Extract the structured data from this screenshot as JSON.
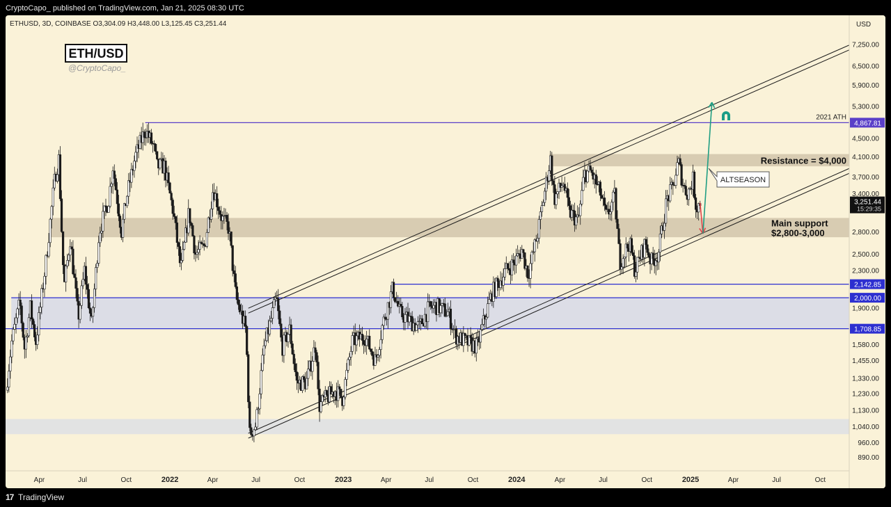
{
  "header": {
    "published": "CryptoCapo_ published on TradingView.com, Jan 21, 2025 08:30 UTC"
  },
  "footer": {
    "logo_glyph": "17",
    "brand": "TradingView"
  },
  "chart_data": {
    "type": "candlestick",
    "symbol_line": "ETHUSD, 3D, COINBASE  O3,304.09  H3,448.00  L3,125.45  C3,251.44",
    "logo_title": "ETH/USD",
    "author": "@CryptoCapo_",
    "currency": "USD",
    "scale": "log",
    "ylim": [
      830,
      8400
    ],
    "xlim": [
      "2021-01-20",
      "2025-12-01"
    ],
    "y_ticks": [
      7250,
      6500,
      5900,
      5300,
      4500,
      4100,
      3700,
      3400,
      2800,
      2500,
      2300,
      1900,
      1580,
      1455,
      1330,
      1230,
      1130,
      1040,
      960,
      890
    ],
    "x_ticks": [
      {
        "label": "Apr",
        "date": "2021-04-01",
        "bold": false
      },
      {
        "label": "Jul",
        "date": "2021-07-01",
        "bold": false
      },
      {
        "label": "Oct",
        "date": "2021-10-01",
        "bold": false
      },
      {
        "label": "2022",
        "date": "2022-01-01",
        "bold": true
      },
      {
        "label": "Apr",
        "date": "2022-04-01",
        "bold": false
      },
      {
        "label": "Jul",
        "date": "2022-07-01",
        "bold": false
      },
      {
        "label": "Oct",
        "date": "2022-10-01",
        "bold": false
      },
      {
        "label": "2023",
        "date": "2023-01-01",
        "bold": true
      },
      {
        "label": "Apr",
        "date": "2023-04-01",
        "bold": false
      },
      {
        "label": "Jul",
        "date": "2023-07-01",
        "bold": false
      },
      {
        "label": "Oct",
        "date": "2023-10-01",
        "bold": false
      },
      {
        "label": "2024",
        "date": "2024-01-01",
        "bold": true
      },
      {
        "label": "Apr",
        "date": "2024-04-01",
        "bold": false
      },
      {
        "label": "Jul",
        "date": "2024-07-01",
        "bold": false
      },
      {
        "label": "Oct",
        "date": "2024-10-01",
        "bold": false
      },
      {
        "label": "2025",
        "date": "2025-01-01",
        "bold": true
      },
      {
        "label": "Apr",
        "date": "2025-04-01",
        "bold": false
      },
      {
        "label": "Jul",
        "date": "2025-07-01",
        "bold": false
      },
      {
        "label": "Oct",
        "date": "2025-10-01",
        "bold": false
      }
    ],
    "price_path": [
      [
        "2021-01-21",
        1250
      ],
      [
        "2021-02-02",
        1600
      ],
      [
        "2021-02-19",
        1950
      ],
      [
        "2021-03-01",
        1550
      ],
      [
        "2021-03-13",
        1900
      ],
      [
        "2021-03-25",
        1600
      ],
      [
        "2021-04-15",
        2400
      ],
      [
        "2021-05-04",
        3700
      ],
      [
        "2021-05-12",
        4050
      ],
      [
        "2021-05-23",
        2100
      ],
      [
        "2021-06-05",
        2700
      ],
      [
        "2021-06-22",
        1800
      ],
      [
        "2021-07-05",
        2300
      ],
      [
        "2021-07-20",
        1750
      ],
      [
        "2021-08-05",
        2800
      ],
      [
        "2021-08-25",
        3300
      ],
      [
        "2021-09-03",
        3900
      ],
      [
        "2021-09-21",
        2800
      ],
      [
        "2021-10-01",
        3300
      ],
      [
        "2021-10-20",
        4100
      ],
      [
        "2021-11-10",
        4700
      ],
      [
        "2021-11-28",
        4300
      ],
      [
        "2021-12-05",
        3900
      ],
      [
        "2021-12-20",
        3900
      ],
      [
        "2022-01-08",
        3100
      ],
      [
        "2022-01-24",
        2300
      ],
      [
        "2022-02-10",
        3100
      ],
      [
        "2022-02-24",
        2500
      ],
      [
        "2022-03-15",
        2600
      ],
      [
        "2022-04-02",
        3500
      ],
      [
        "2022-04-20",
        3000
      ],
      [
        "2022-05-05",
        2850
      ],
      [
        "2022-05-20",
        2000
      ],
      [
        "2022-06-10",
        1700
      ],
      [
        "2022-06-18",
        1000
      ],
      [
        "2022-07-01",
        1050
      ],
      [
        "2022-07-18",
        1550
      ],
      [
        "2022-08-13",
        2000
      ],
      [
        "2022-08-25",
        1550
      ],
      [
        "2022-09-10",
        1700
      ],
      [
        "2022-09-25",
        1300
      ],
      [
        "2022-10-15",
        1300
      ],
      [
        "2022-11-05",
        1600
      ],
      [
        "2022-11-10",
        1150
      ],
      [
        "2022-11-25",
        1200
      ],
      [
        "2022-12-15",
        1250
      ],
      [
        "2022-12-30",
        1200
      ],
      [
        "2023-01-20",
        1600
      ],
      [
        "2023-02-15",
        1650
      ],
      [
        "2023-03-10",
        1450
      ],
      [
        "2023-03-25",
        1750
      ],
      [
        "2023-04-15",
        2100
      ],
      [
        "2023-04-30",
        1850
      ],
      [
        "2023-05-15",
        1800
      ],
      [
        "2023-06-10",
        1720
      ],
      [
        "2023-06-28",
        1880
      ],
      [
        "2023-07-15",
        1920
      ],
      [
        "2023-08-10",
        1850
      ],
      [
        "2023-08-25",
        1650
      ],
      [
        "2023-09-15",
        1600
      ],
      [
        "2023-10-10",
        1560
      ],
      [
        "2023-10-25",
        1800
      ],
      [
        "2023-11-10",
        2050
      ],
      [
        "2023-12-10",
        2300
      ],
      [
        "2023-12-28",
        2400
      ],
      [
        "2024-01-12",
        2550
      ],
      [
        "2024-01-25",
        2250
      ],
      [
        "2024-02-15",
        2800
      ],
      [
        "2024-03-05",
        3700
      ],
      [
        "2024-03-12",
        4050
      ],
      [
        "2024-03-20",
        3300
      ],
      [
        "2024-04-08",
        3600
      ],
      [
        "2024-04-20",
        3100
      ],
      [
        "2024-05-10",
        2950
      ],
      [
        "2024-05-22",
        3750
      ],
      [
        "2024-06-05",
        3800
      ],
      [
        "2024-06-25",
        3400
      ],
      [
        "2024-07-08",
        3000
      ],
      [
        "2024-07-25",
        3350
      ],
      [
        "2024-08-05",
        2400
      ],
      [
        "2024-08-25",
        2650
      ],
      [
        "2024-09-06",
        2300
      ],
      [
        "2024-09-28",
        2650
      ],
      [
        "2024-10-10",
        2400
      ],
      [
        "2024-10-25",
        2500
      ],
      [
        "2024-11-12",
        3300
      ],
      [
        "2024-11-25",
        3500
      ],
      [
        "2024-12-06",
        4000
      ],
      [
        "2024-12-18",
        3500
      ],
      [
        "2024-12-26",
        3400
      ],
      [
        "2025-01-06",
        3650
      ],
      [
        "2025-01-13",
        3150
      ],
      [
        "2025-01-21",
        3251
      ]
    ],
    "zones": [
      {
        "label": "Resistance = $4,000",
        "low": 3900,
        "high": 4150,
        "from": "2024-03-10",
        "color": "#d8ccb2"
      },
      {
        "label": "Main support\n$2,800-3,000",
        "low": 2720,
        "high": 3000,
        "from": "2021-04-25",
        "color": "#d8ccb2"
      },
      {
        "label": "",
        "low": 1708.85,
        "high": 2000,
        "from": "2021-02-01",
        "color": "#dcdde6"
      },
      {
        "label": "",
        "low": 1000,
        "high": 1080,
        "from": "2021-01-20",
        "color": "#e2e3e3"
      }
    ],
    "hlines": [
      {
        "label": "2021 ATH",
        "price_label": "4,867.81",
        "value": 4867.81,
        "from": "2021-11-10",
        "color": "#5a3fc8"
      },
      {
        "label": "",
        "price_label": "2,142.85",
        "value": 2142.85,
        "from": "2023-04-15",
        "color": "#2d2fd0"
      },
      {
        "label": "",
        "price_label": "2,000.00",
        "value": 2000,
        "from": "2021-02-01",
        "color": "#2d2fd0"
      },
      {
        "label": "",
        "price_label": "1,708.85",
        "value": 1708.85,
        "from": "2021-01-20",
        "color": "#2d2fd0"
      }
    ],
    "channel": {
      "upper": [
        [
          "2022-06-15",
          1850
        ],
        [
          "2025-12-15",
          7150
        ]
      ],
      "lower": [
        [
          "2022-06-15",
          980
        ],
        [
          "2025-12-15",
          3820
        ]
      ],
      "offset_pct": 2.5
    },
    "last_price": {
      "label": "3,251.44",
      "countdown": "15:29:35",
      "value": 3251.44
    },
    "annotations": {
      "callout": "ALTSEASON",
      "arrow_down": {
        "from": [
          "2025-01-21",
          3240
        ],
        "to": [
          "2025-01-27",
          2770
        ],
        "color": "#e0454a"
      },
      "arrow_up": {
        "from": [
          "2025-01-27",
          2770
        ],
        "to": [
          "2025-02-15",
          5400
        ],
        "color": "#1f9e83"
      },
      "magnet_icon": "magnet-icon"
    }
  }
}
